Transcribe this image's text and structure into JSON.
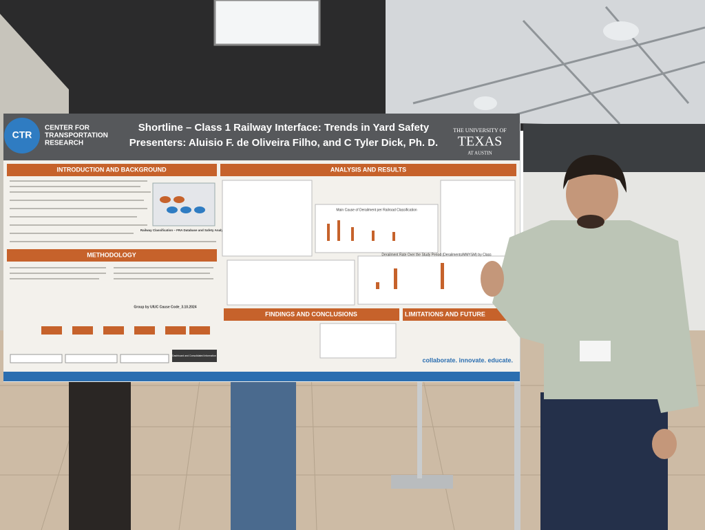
{
  "poster": {
    "logo": {
      "mark": "CTR",
      "name": [
        "CENTER FOR",
        "TRANSPORTATION",
        "RESEARCH"
      ]
    },
    "title": "Shortline – Class 1 Railway Interface: Trends in Yard Safety",
    "presenters": "Presenters: Aluisio F. de Oliveira Filho, and C Tyler Dick, Ph. D.",
    "university": {
      "line1": "THE UNIVERSITY OF",
      "line2": "TEXAS",
      "line3": "AT AUSTIN"
    },
    "sections": {
      "introduction": "INTRODUCTION AND BACKGROUND",
      "methodology": "METHODOLOGY",
      "analysis": "ANALYSIS AND RESULTS",
      "findings": "FINDINGS AND CONCLUSIONS",
      "limitations": "LIMITATIONS AND FUTURE"
    },
    "captions": {
      "classification": "Railway Classification – FRA Database and Safety Analysis",
      "main_cause": "Main Cause of Derailment per Railroad Classification",
      "rate": "Derailment Rate Over the Study Period (Derailments/MMYSM) by Class",
      "group": "Group by UIUC Cause Code_3.10.2024",
      "dashboard": "Dashboard and Consolidated Information"
    },
    "footer": "collaborate. innovate. educate."
  }
}
